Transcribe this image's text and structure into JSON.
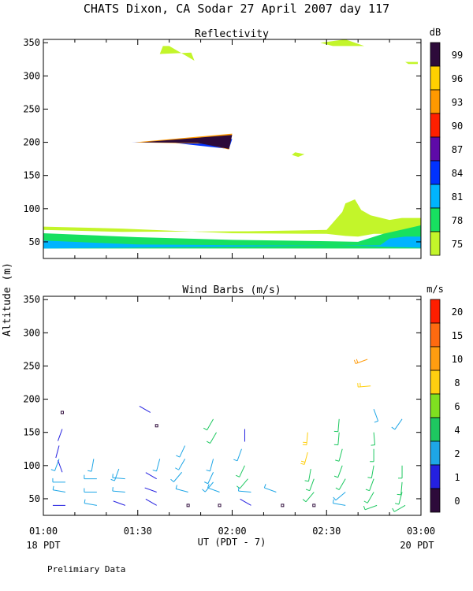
{
  "title": "CHATS Dixon, CA  Sodar  27 April 2007  day 117",
  "y_axis_label": "Altitude (m)",
  "x_axis_label": "UT  (PDT - 7)",
  "x_left_note": "18 PDT",
  "x_right_note": "20 PDT",
  "footer": "Prelimiary Data",
  "x_ticks": [
    "01:00",
    "01:30",
    "02:00",
    "02:30",
    "03:00"
  ],
  "y_ticks": [
    "50",
    "100",
    "150",
    "200",
    "250",
    "300",
    "350"
  ],
  "chart_data": [
    {
      "type": "heatmap",
      "title": "Reflectivity",
      "xlim": [
        60,
        180
      ],
      "ylim": [
        25,
        355
      ],
      "grid": false,
      "colorbar": {
        "unit": "dB",
        "ticks": [
          "99",
          "96",
          "93",
          "90",
          "87",
          "84",
          "81",
          "78",
          "75"
        ],
        "colors": [
          "#2d0a3a",
          "#ffd000",
          "#ff9900",
          "#ff1f00",
          "#5e0aa8",
          "#0032ff",
          "#00b4ff",
          "#17e060",
          "#c3f52a"
        ]
      },
      "regions": [
        {
          "level": "75",
          "points": [
            [
              60,
              73
            ],
            [
              85,
              70
            ],
            [
              120,
              63
            ],
            [
              150,
              62
            ],
            [
              156,
              59
            ],
            [
              160,
              58
            ],
            [
              165,
              62
            ],
            [
              180,
              62
            ],
            [
              180,
              86
            ],
            [
              174,
              86
            ],
            [
              170,
              83
            ],
            [
              164,
              90
            ],
            [
              161,
              98
            ],
            [
              159,
              114
            ],
            [
              156,
              108
            ],
            [
              155,
              95
            ],
            [
              150,
              68
            ],
            [
              125,
              66
            ],
            [
              85,
              65
            ],
            [
              60,
              68
            ]
          ]
        },
        {
          "level": "75",
          "points": [
            [
              97,
              333
            ],
            [
              107,
              335
            ],
            [
              108,
              323
            ],
            [
              100,
              345
            ],
            [
              98,
              345
            ]
          ]
        },
        {
          "level": "75",
          "points": [
            [
              148,
              350
            ],
            [
              156,
              355
            ],
            [
              162,
              345
            ],
            [
              152,
              345
            ]
          ]
        },
        {
          "level": "75",
          "points": [
            [
              175,
              321
            ],
            [
              179,
              321
            ],
            [
              179,
              318
            ],
            [
              176,
              318
            ]
          ]
        },
        {
          "level": "75",
          "points": [
            [
              140,
              185
            ],
            [
              143,
              182
            ],
            [
              141,
              178
            ],
            [
              139,
              181
            ]
          ]
        },
        {
          "level": "78",
          "points": [
            [
              60,
              63
            ],
            [
              90,
              57
            ],
            [
              120,
              53
            ],
            [
              150,
              51
            ],
            [
              160,
              50
            ],
            [
              168,
              62
            ],
            [
              180,
              75
            ],
            [
              180,
              40
            ],
            [
              60,
              40
            ]
          ]
        },
        {
          "level": "81",
          "points": [
            [
              60,
              52
            ],
            [
              90,
              46
            ],
            [
              120,
              45
            ],
            [
              160,
              44
            ],
            [
              180,
              41
            ],
            [
              180,
              58
            ],
            [
              175,
              58
            ],
            [
              170,
              55
            ],
            [
              167,
              45
            ],
            [
              60,
              40
            ]
          ]
        },
        {
          "level": "84",
          "points": [
            [
              88,
              200
            ],
            [
              120,
              205
            ],
            [
              119,
              190
            ],
            [
              100,
              200
            ]
          ]
        },
        {
          "level": "93",
          "points": [
            [
              89,
              200
            ],
            [
              120,
              213
            ],
            [
              119,
              189
            ],
            [
              111,
              198
            ]
          ]
        },
        {
          "level": "99",
          "points": [
            [
              91,
              200
            ],
            [
              120,
              211
            ],
            [
              119,
              190
            ],
            [
              109,
              199
            ]
          ]
        }
      ]
    },
    {
      "type": "scatter",
      "title": "Wind Barbs (m/s)",
      "xlim": [
        60,
        180
      ],
      "ylim": [
        25,
        355
      ],
      "grid": false,
      "colorbar": {
        "unit": "m/s",
        "ticks": [
          "20",
          "15",
          "10",
          "8",
          "6",
          "4",
          "2",
          "1",
          "0"
        ],
        "colors": [
          "#ff1e00",
          "#ff6a10",
          "#ff9d10",
          "#ffcf10",
          "#7fe020",
          "#1ec860",
          "#1ea6e6",
          "#2420e0",
          "#2d0a3a"
        ]
      },
      "barbs": [
        {
          "t": 66,
          "h": 180,
          "speed": 0.5,
          "dir": null
        },
        {
          "t": 66,
          "h": 155,
          "speed": 1,
          "dir": 200
        },
        {
          "t": 65,
          "h": 130,
          "speed": 1,
          "dir": 195
        },
        {
          "t": 65,
          "h": 110,
          "speed": 2,
          "dir": 200
        },
        {
          "t": 66,
          "h": 90,
          "speed": 1,
          "dir": 340
        },
        {
          "t": 67,
          "h": 75,
          "speed": 3,
          "dir": 270
        },
        {
          "t": 67,
          "h": 60,
          "speed": 2,
          "dir": 280
        },
        {
          "t": 67,
          "h": 40,
          "speed": 1,
          "dir": 270
        },
        {
          "t": 76,
          "h": 110,
          "speed": 3,
          "dir": 190
        },
        {
          "t": 77,
          "h": 80,
          "speed": 3,
          "dir": 270
        },
        {
          "t": 77,
          "h": 60,
          "speed": 2,
          "dir": 270
        },
        {
          "t": 77,
          "h": 40,
          "speed": 2,
          "dir": 280
        },
        {
          "t": 84,
          "h": 95,
          "speed": 2,
          "dir": 200
        },
        {
          "t": 86,
          "h": 80,
          "speed": 3,
          "dir": 275
        },
        {
          "t": 86,
          "h": 60,
          "speed": 2,
          "dir": 275
        },
        {
          "t": 86,
          "h": 40,
          "speed": 1,
          "dir": 290
        },
        {
          "t": 94,
          "h": 180,
          "speed": 1,
          "dir": 300
        },
        {
          "t": 96,
          "h": 160,
          "speed": 0.5,
          "dir": null
        },
        {
          "t": 97,
          "h": 110,
          "speed": 3,
          "dir": 195
        },
        {
          "t": 96,
          "h": 80,
          "speed": 1,
          "dir": 300
        },
        {
          "t": 96,
          "h": 60,
          "speed": 1,
          "dir": 290
        },
        {
          "t": 96,
          "h": 40,
          "speed": 1,
          "dir": 300
        },
        {
          "t": 105,
          "h": 130,
          "speed": 3,
          "dir": 205
        },
        {
          "t": 105,
          "h": 110,
          "speed": 3,
          "dir": 210
        },
        {
          "t": 104,
          "h": 90,
          "speed": 2,
          "dir": 220
        },
        {
          "t": 106,
          "h": 60,
          "speed": 3,
          "dir": 285
        },
        {
          "t": 106,
          "h": 40,
          "speed": 0.5,
          "dir": null
        },
        {
          "t": 114,
          "h": 170,
          "speed": 4,
          "dir": 210
        },
        {
          "t": 115,
          "h": 150,
          "speed": 4,
          "dir": 210
        },
        {
          "t": 114,
          "h": 110,
          "speed": 3,
          "dir": 195
        },
        {
          "t": 114,
          "h": 90,
          "speed": 3,
          "dir": 205
        },
        {
          "t": 114,
          "h": 75,
          "speed": 3,
          "dir": 220
        },
        {
          "t": 116,
          "h": 60,
          "speed": 2,
          "dir": 290
        },
        {
          "t": 116,
          "h": 40,
          "speed": 0.5,
          "dir": null
        },
        {
          "t": 124,
          "h": 155,
          "speed": 1,
          "dir": 180
        },
        {
          "t": 123,
          "h": 125,
          "speed": 3,
          "dir": 200
        },
        {
          "t": 124,
          "h": 100,
          "speed": 4,
          "dir": 205
        },
        {
          "t": 125,
          "h": 80,
          "speed": 4,
          "dir": 220
        },
        {
          "t": 126,
          "h": 60,
          "speed": 3,
          "dir": 275
        },
        {
          "t": 126,
          "h": 40,
          "speed": 1,
          "dir": 300
        },
        {
          "t": 134,
          "h": 60,
          "speed": 2,
          "dir": 290
        },
        {
          "t": 136,
          "h": 40,
          "speed": 0.5,
          "dir": null
        },
        {
          "t": 144,
          "h": 150,
          "speed": 8,
          "dir": 185
        },
        {
          "t": 144,
          "h": 120,
          "speed": 8,
          "dir": 195
        },
        {
          "t": 145,
          "h": 95,
          "speed": 5,
          "dir": 190
        },
        {
          "t": 146,
          "h": 80,
          "speed": 5,
          "dir": 200
        },
        {
          "t": 146,
          "h": 60,
          "speed": 5,
          "dir": 220
        },
        {
          "t": 146,
          "h": 40,
          "speed": 0.5,
          "dir": null
        },
        {
          "t": 154,
          "h": 170,
          "speed": 4,
          "dir": 185
        },
        {
          "t": 154,
          "h": 150,
          "speed": 4,
          "dir": 185
        },
        {
          "t": 155,
          "h": 125,
          "speed": 4,
          "dir": 195
        },
        {
          "t": 155,
          "h": 100,
          "speed": 4,
          "dir": 200
        },
        {
          "t": 156,
          "h": 80,
          "speed": 4,
          "dir": 210
        },
        {
          "t": 156,
          "h": 60,
          "speed": 3,
          "dir": 230
        },
        {
          "t": 156,
          "h": 40,
          "speed": 3,
          "dir": 280
        },
        {
          "t": 163,
          "h": 260,
          "speed": 10,
          "dir": 250
        },
        {
          "t": 164,
          "h": 220,
          "speed": 8,
          "dir": 265
        },
        {
          "t": 165,
          "h": 185,
          "speed": 3,
          "dir": 160
        },
        {
          "t": 165,
          "h": 150,
          "speed": 5,
          "dir": 175
        },
        {
          "t": 165,
          "h": 125,
          "speed": 4,
          "dir": 180
        },
        {
          "t": 165,
          "h": 100,
          "speed": 4,
          "dir": 190
        },
        {
          "t": 165,
          "h": 80,
          "speed": 4,
          "dir": 200
        },
        {
          "t": 165,
          "h": 60,
          "speed": 4,
          "dir": 210
        },
        {
          "t": 166,
          "h": 40,
          "speed": 4,
          "dir": 250
        },
        {
          "t": 174,
          "h": 170,
          "speed": 3,
          "dir": 215
        },
        {
          "t": 174,
          "h": 100,
          "speed": 4,
          "dir": 180
        },
        {
          "t": 174,
          "h": 75,
          "speed": 4,
          "dir": 185
        },
        {
          "t": 174,
          "h": 60,
          "speed": 4,
          "dir": 195
        },
        {
          "t": 175,
          "h": 40,
          "speed": 4,
          "dir": 240
        }
      ]
    }
  ]
}
